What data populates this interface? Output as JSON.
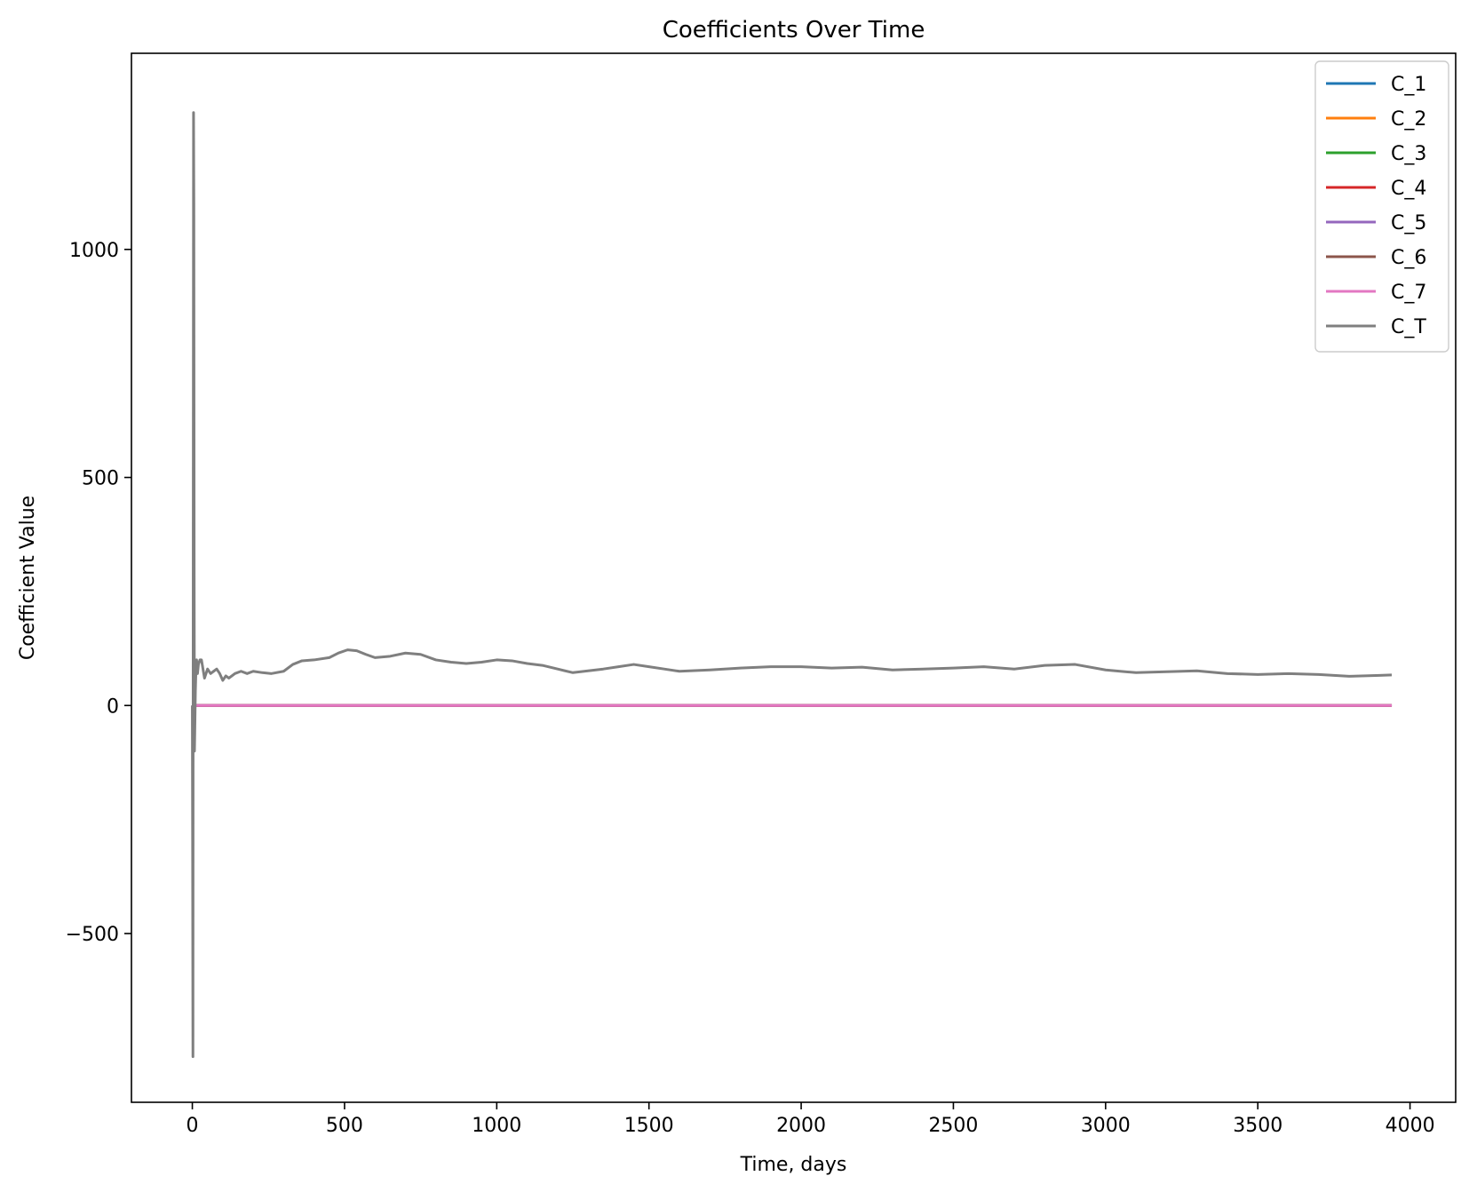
{
  "chart_data": {
    "type": "line",
    "title": "Coefficients Over Time",
    "xlabel": "Time, days",
    "ylabel": "Coefficient Value",
    "xlim": [
      -200,
      4150
    ],
    "ylim": [
      -870,
      1430
    ],
    "xticks": [
      0,
      500,
      1000,
      1500,
      2000,
      2500,
      3000,
      3500,
      4000
    ],
    "xtick_labels": [
      "0",
      "500",
      "1000",
      "1500",
      "2000",
      "2500",
      "3000",
      "3500",
      "4000"
    ],
    "yticks": [
      -500,
      0,
      500,
      1000
    ],
    "ytick_labels": [
      "−500",
      "0",
      "500",
      "1000"
    ],
    "grid": false,
    "legend_position": "top-right",
    "series": [
      {
        "name": "C_1",
        "color": "#1f77b4",
        "x": [
          0,
          3940
        ],
        "y": [
          0,
          0
        ]
      },
      {
        "name": "C_2",
        "color": "#ff7f0e",
        "x": [
          0,
          3940
        ],
        "y": [
          0,
          0
        ]
      },
      {
        "name": "C_3",
        "color": "#2ca02c",
        "x": [
          0,
          3940
        ],
        "y": [
          0,
          0
        ]
      },
      {
        "name": "C_4",
        "color": "#d62728",
        "x": [
          0,
          3940
        ],
        "y": [
          0,
          0
        ]
      },
      {
        "name": "C_5",
        "color": "#9467bd",
        "x": [
          0,
          3940
        ],
        "y": [
          0,
          0
        ]
      },
      {
        "name": "C_6",
        "color": "#8c564b",
        "x": [
          0,
          3940
        ],
        "y": [
          0,
          0
        ]
      },
      {
        "name": "C_7",
        "color": "#e377c2",
        "x": [
          0,
          3940
        ],
        "y": [
          0,
          0
        ]
      },
      {
        "name": "C_T",
        "color": "#7f7f7f",
        "x": [
          0,
          1,
          2,
          3,
          4,
          5,
          6,
          7,
          8,
          10,
          12,
          14,
          17,
          20,
          25,
          30,
          40,
          50,
          60,
          70,
          80,
          90,
          100,
          110,
          120,
          140,
          160,
          180,
          200,
          230,
          260,
          300,
          330,
          360,
          400,
          450,
          480,
          510,
          540,
          570,
          600,
          650,
          700,
          750,
          800,
          850,
          900,
          950,
          1000,
          1050,
          1100,
          1150,
          1200,
          1250,
          1300,
          1350,
          1400,
          1450,
          1500,
          1550,
          1600,
          1700,
          1800,
          1900,
          2000,
          2100,
          2200,
          2300,
          2400,
          2500,
          2600,
          2700,
          2800,
          2900,
          3000,
          3100,
          3200,
          3300,
          3400,
          3500,
          3600,
          3700,
          3800,
          3900,
          3940
        ],
        "y": [
          0,
          -320,
          -770,
          400,
          1300,
          1100,
          300,
          -100,
          -60,
          30,
          80,
          100,
          70,
          90,
          100,
          100,
          60,
          80,
          70,
          75,
          80,
          70,
          55,
          65,
          60,
          70,
          75,
          70,
          75,
          72,
          70,
          75,
          90,
          98,
          100,
          105,
          115,
          122,
          120,
          112,
          105,
          108,
          115,
          112,
          100,
          95,
          92,
          95,
          100,
          98,
          92,
          88,
          80,
          72,
          76,
          80,
          85,
          90,
          85,
          80,
          75,
          78,
          82,
          85,
          85,
          82,
          84,
          78,
          80,
          82,
          85,
          80,
          88,
          90,
          78,
          72,
          74,
          76,
          70,
          68,
          70,
          68,
          64,
          66,
          67
        ]
      }
    ]
  }
}
